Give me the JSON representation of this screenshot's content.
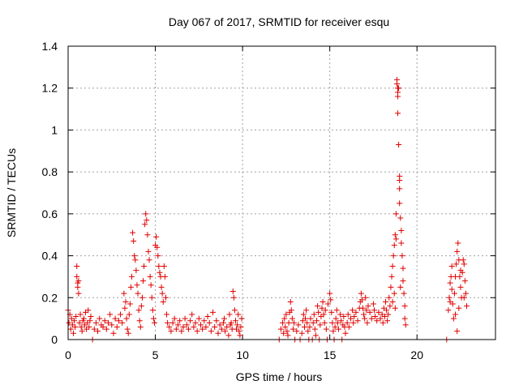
{
  "chart_data": {
    "type": "scatter",
    "title": "Day 067 of 2017, SRMTID for receiver esqu",
    "xlabel": "GPS time / hours",
    "ylabel": "SRMTID / TECUs",
    "xlim": [
      0,
      24.5
    ],
    "ylim": [
      0,
      1.4
    ],
    "x_ticks": [
      0,
      5,
      10,
      15,
      20
    ],
    "x_tick_labels": [
      "0",
      "5",
      "10",
      "15",
      "20"
    ],
    "y_ticks": [
      0,
      0.2,
      0.4,
      0.6,
      0.8,
      1.0,
      1.2,
      1.4
    ],
    "y_tick_labels": [
      "0",
      "0.2",
      "0.4",
      "0.6",
      "0.8",
      "1",
      "1.2",
      "1.4"
    ],
    "grid": true,
    "legend": "none",
    "marker": "plus",
    "color": "#e00000",
    "series": [
      {
        "points": [
          [
            0.0,
            0.14
          ],
          [
            0.05,
            0.08
          ],
          [
            0.1,
            0.12
          ],
          [
            0.15,
            0.05
          ],
          [
            0.2,
            0.1
          ],
          [
            0.25,
            0.07
          ],
          [
            0.3,
            0.03
          ],
          [
            0.35,
            0.09
          ],
          [
            0.4,
            0.06
          ],
          [
            0.45,
            0.11
          ],
          [
            0.5,
            0.35
          ],
          [
            0.5,
            0.3
          ],
          [
            0.55,
            0.27
          ],
          [
            0.55,
            0.25
          ],
          [
            0.6,
            0.22
          ],
          [
            0.6,
            0.28
          ],
          [
            0.65,
            0.08
          ],
          [
            0.7,
            0.12
          ],
          [
            0.75,
            0.06
          ],
          [
            0.8,
            0.04
          ],
          [
            0.85,
            0.09
          ],
          [
            0.9,
            0.1
          ],
          [
            0.95,
            0.07
          ],
          [
            1.0,
            0.13
          ],
          [
            1.05,
            0.05
          ],
          [
            1.1,
            0.08
          ],
          [
            1.15,
            0.14
          ],
          [
            1.2,
            0.06
          ],
          [
            1.25,
            0.09
          ],
          [
            1.3,
            0.11
          ],
          [
            1.4,
            0.0
          ],
          [
            1.5,
            0.05
          ],
          [
            1.6,
            0.08
          ],
          [
            1.7,
            0.04
          ],
          [
            1.8,
            0.1
          ],
          [
            1.9,
            0.07
          ],
          [
            2.0,
            0.06
          ],
          [
            2.1,
            0.09
          ],
          [
            2.2,
            0.05
          ],
          [
            2.3,
            0.08
          ],
          [
            2.4,
            0.12
          ],
          [
            2.5,
            0.07
          ],
          [
            2.6,
            0.03
          ],
          [
            2.7,
            0.1
          ],
          [
            2.8,
            0.06
          ],
          [
            2.9,
            0.09
          ],
          [
            3.0,
            0.12
          ],
          [
            3.1,
            0.08
          ],
          [
            3.2,
            0.22
          ],
          [
            3.25,
            0.15
          ],
          [
            3.3,
            0.18
          ],
          [
            3.35,
            0.1
          ],
          [
            3.4,
            0.05
          ],
          [
            3.45,
            0.03
          ],
          [
            3.5,
            0.12
          ],
          [
            3.55,
            0.17
          ],
          [
            3.6,
            0.25
          ],
          [
            3.65,
            0.3
          ],
          [
            3.7,
            0.51
          ],
          [
            3.75,
            0.47
          ],
          [
            3.8,
            0.4
          ],
          [
            3.85,
            0.38
          ],
          [
            3.9,
            0.33
          ],
          [
            3.95,
            0.26
          ],
          [
            4.0,
            0.22
          ],
          [
            4.05,
            0.14
          ],
          [
            4.1,
            0.09
          ],
          [
            4.15,
            0.06
          ],
          [
            4.2,
            0.16
          ],
          [
            4.25,
            0.2
          ],
          [
            4.3,
            0.28
          ],
          [
            4.35,
            0.35
          ],
          [
            4.4,
            0.55
          ],
          [
            4.45,
            0.6
          ],
          [
            4.5,
            0.57
          ],
          [
            4.55,
            0.5
          ],
          [
            4.6,
            0.42
          ],
          [
            4.65,
            0.38
          ],
          [
            4.7,
            0.3
          ],
          [
            4.75,
            0.26
          ],
          [
            4.8,
            0.2
          ],
          [
            4.85,
            0.14
          ],
          [
            4.9,
            0.1
          ],
          [
            4.95,
            0.08
          ],
          [
            5.0,
            0.45
          ],
          [
            5.05,
            0.49
          ],
          [
            5.1,
            0.44
          ],
          [
            5.15,
            0.4
          ],
          [
            5.2,
            0.35
          ],
          [
            5.25,
            0.32
          ],
          [
            5.3,
            0.3
          ],
          [
            5.35,
            0.25
          ],
          [
            5.4,
            0.22
          ],
          [
            5.45,
            0.18
          ],
          [
            5.5,
            0.35
          ],
          [
            5.55,
            0.3
          ],
          [
            5.6,
            0.2
          ],
          [
            5.65,
            0.12
          ],
          [
            5.7,
            0.08
          ],
          [
            5.8,
            0.06
          ],
          [
            5.9,
            0.04
          ],
          [
            6.0,
            0.08
          ],
          [
            6.1,
            0.1
          ],
          [
            6.2,
            0.05
          ],
          [
            6.3,
            0.07
          ],
          [
            6.4,
            0.09
          ],
          [
            6.5,
            0.04
          ],
          [
            6.6,
            0.06
          ],
          [
            6.7,
            0.1
          ],
          [
            6.8,
            0.07
          ],
          [
            6.9,
            0.05
          ],
          [
            7.0,
            0.09
          ],
          [
            7.1,
            0.12
          ],
          [
            7.2,
            0.06
          ],
          [
            7.3,
            0.08
          ],
          [
            7.4,
            0.04
          ],
          [
            7.5,
            0.1
          ],
          [
            7.6,
            0.07
          ],
          [
            7.7,
            0.05
          ],
          [
            7.8,
            0.09
          ],
          [
            7.9,
            0.06
          ],
          [
            8.0,
            0.11
          ],
          [
            8.1,
            0.08
          ],
          [
            8.2,
            0.04
          ],
          [
            8.3,
            0.13
          ],
          [
            8.4,
            0.06
          ],
          [
            8.5,
            0.09
          ],
          [
            8.6,
            0.03
          ],
          [
            8.7,
            0.07
          ],
          [
            8.8,
            0.05
          ],
          [
            8.9,
            0.08
          ],
          [
            9.0,
            0.04
          ],
          [
            9.1,
            0.06
          ],
          [
            9.2,
            0.02
          ],
          [
            9.3,
            0.07
          ],
          [
            9.4,
            0.05
          ],
          [
            9.45,
            0.23
          ],
          [
            9.5,
            0.2
          ],
          [
            9.55,
            0.14
          ],
          [
            9.6,
            0.09
          ],
          [
            9.65,
            0.05
          ],
          [
            9.7,
            0.07
          ],
          [
            9.75,
            0.12
          ],
          [
            9.8,
            0.04
          ],
          [
            9.85,
            0.02
          ],
          [
            9.9,
            0.06
          ],
          [
            9.95,
            0.1
          ],
          [
            9.35,
            0.08
          ],
          [
            9.25,
            0.12
          ],
          [
            8.95,
            0.1
          ],
          [
            12.1,
            0.0
          ],
          [
            12.2,
            0.05
          ],
          [
            12.3,
            0.08
          ],
          [
            12.35,
            0.03
          ],
          [
            12.4,
            0.1
          ],
          [
            12.45,
            0.06
          ],
          [
            12.5,
            0.12
          ],
          [
            12.55,
            0.04
          ],
          [
            12.6,
            0.02
          ],
          [
            12.65,
            0.08
          ],
          [
            12.7,
            0.13
          ],
          [
            12.75,
            0.18
          ],
          [
            12.8,
            0.14
          ],
          [
            12.85,
            0.1
          ],
          [
            12.9,
            0.05
          ],
          [
            12.95,
            0.08
          ],
          [
            13.0,
            0.0
          ],
          [
            13.1,
            0.04
          ],
          [
            13.2,
            0.07
          ],
          [
            13.3,
            0.0
          ],
          [
            13.4,
            0.03
          ],
          [
            13.45,
            0.09
          ],
          [
            13.5,
            0.12
          ],
          [
            13.55,
            0.06
          ],
          [
            13.6,
            0.1
          ],
          [
            13.65,
            0.14
          ],
          [
            13.7,
            0.08
          ],
          [
            13.75,
            0.04
          ],
          [
            13.8,
            0.0
          ],
          [
            13.85,
            0.06
          ],
          [
            13.9,
            0.1
          ],
          [
            14.0,
            0.0
          ],
          [
            14.05,
            0.08
          ],
          [
            14.1,
            0.12
          ],
          [
            14.15,
            0.05
          ],
          [
            14.2,
            0.02
          ],
          [
            14.25,
            0.09
          ],
          [
            14.3,
            0.16
          ],
          [
            14.35,
            0.13
          ],
          [
            14.4,
            0.0
          ],
          [
            14.45,
            0.07
          ],
          [
            14.5,
            0.11
          ],
          [
            14.55,
            0.15
          ],
          [
            14.6,
            0.18
          ],
          [
            14.65,
            0.12
          ],
          [
            14.7,
            0.08
          ],
          [
            14.75,
            0.14
          ],
          [
            14.8,
            0.05
          ],
          [
            14.85,
            0.0
          ],
          [
            14.9,
            0.17
          ],
          [
            15.0,
            0.22
          ],
          [
            15.05,
            0.19
          ],
          [
            15.1,
            0.13
          ],
          [
            15.15,
            0.08
          ],
          [
            15.2,
            0.04
          ],
          [
            15.25,
            0.0
          ],
          [
            15.3,
            0.06
          ],
          [
            15.35,
            0.1
          ],
          [
            15.4,
            0.14
          ],
          [
            15.45,
            0.08
          ],
          [
            15.5,
            0.05
          ],
          [
            15.6,
            0.12
          ],
          [
            15.65,
            0.09
          ],
          [
            15.7,
            0.0
          ],
          [
            15.75,
            0.07
          ],
          [
            15.8,
            0.11
          ],
          [
            15.85,
            0.06
          ],
          [
            15.9,
            0.03
          ],
          [
            16.0,
            0.08
          ],
          [
            16.05,
            0.12
          ],
          [
            16.1,
            0.06
          ],
          [
            16.2,
            0.1
          ],
          [
            16.3,
            0.14
          ],
          [
            16.35,
            0.08
          ],
          [
            16.4,
            0.11
          ],
          [
            16.5,
            0.13
          ],
          [
            16.6,
            0.09
          ],
          [
            16.7,
            0.15
          ],
          [
            16.75,
            0.18
          ],
          [
            16.8,
            0.22
          ],
          [
            16.85,
            0.19
          ],
          [
            16.9,
            0.15
          ],
          [
            16.95,
            0.12
          ],
          [
            17.0,
            0.1
          ],
          [
            17.05,
            0.2
          ],
          [
            17.1,
            0.14
          ],
          [
            17.15,
            0.08
          ],
          [
            17.2,
            0.16
          ],
          [
            17.3,
            0.13
          ],
          [
            17.4,
            0.1
          ],
          [
            17.5,
            0.17
          ],
          [
            17.55,
            0.14
          ],
          [
            17.6,
            0.11
          ],
          [
            17.7,
            0.09
          ],
          [
            17.8,
            0.13
          ],
          [
            17.9,
            0.1
          ],
          [
            18.0,
            0.12
          ],
          [
            18.05,
            0.08
          ],
          [
            18.1,
            0.15
          ],
          [
            18.15,
            0.11
          ],
          [
            18.2,
            0.18
          ],
          [
            18.25,
            0.14
          ],
          [
            18.3,
            0.09
          ],
          [
            18.35,
            0.12
          ],
          [
            18.4,
            0.2
          ],
          [
            18.45,
            0.16
          ],
          [
            18.5,
            0.25
          ],
          [
            18.55,
            0.3
          ],
          [
            18.6,
            0.35
          ],
          [
            18.65,
            0.4
          ],
          [
            18.7,
            0.45
          ],
          [
            18.75,
            0.5
          ],
          [
            18.8,
            0.48
          ],
          [
            18.8,
            0.6
          ],
          [
            18.85,
            1.24
          ],
          [
            18.85,
            1.22
          ],
          [
            18.9,
            1.2
          ],
          [
            18.9,
            1.18
          ],
          [
            18.9,
            1.16
          ],
          [
            18.95,
            1.2
          ],
          [
            18.9,
            1.08
          ],
          [
            18.95,
            0.93
          ],
          [
            19.0,
            0.78
          ],
          [
            19.0,
            0.76
          ],
          [
            19.0,
            0.72
          ],
          [
            19.0,
            0.65
          ],
          [
            19.05,
            0.58
          ],
          [
            19.1,
            0.52
          ],
          [
            19.1,
            0.46
          ],
          [
            19.15,
            0.4
          ],
          [
            19.2,
            0.34
          ],
          [
            19.2,
            0.28
          ],
          [
            19.25,
            0.22
          ],
          [
            19.3,
            0.16
          ],
          [
            19.3,
            0.1
          ],
          [
            19.35,
            0.07
          ],
          [
            18.6,
            0.18
          ],
          [
            18.7,
            0.22
          ],
          [
            18.75,
            0.15
          ],
          [
            19.05,
            0.25
          ],
          [
            21.7,
            0.0
          ],
          [
            21.8,
            0.14
          ],
          [
            21.85,
            0.2
          ],
          [
            21.9,
            0.27
          ],
          [
            21.95,
            0.3
          ],
          [
            22.0,
            0.24
          ],
          [
            22.05,
            0.17
          ],
          [
            22.1,
            0.1
          ],
          [
            22.15,
            0.22
          ],
          [
            22.2,
            0.3
          ],
          [
            22.25,
            0.36
          ],
          [
            22.3,
            0.42
          ],
          [
            22.35,
            0.46
          ],
          [
            22.4,
            0.38
          ],
          [
            22.45,
            0.3
          ],
          [
            22.5,
            0.25
          ],
          [
            22.55,
            0.2
          ],
          [
            22.6,
            0.32
          ],
          [
            22.65,
            0.38
          ],
          [
            22.7,
            0.36
          ],
          [
            22.75,
            0.28
          ],
          [
            22.8,
            0.22
          ],
          [
            22.85,
            0.16
          ],
          [
            22.3,
            0.04
          ],
          [
            22.4,
            0.15
          ],
          [
            22.5,
            0.33
          ],
          [
            22.2,
            0.12
          ],
          [
            22.0,
            0.35
          ],
          [
            21.9,
            0.18
          ],
          [
            22.7,
            0.2
          ]
        ]
      }
    ]
  }
}
